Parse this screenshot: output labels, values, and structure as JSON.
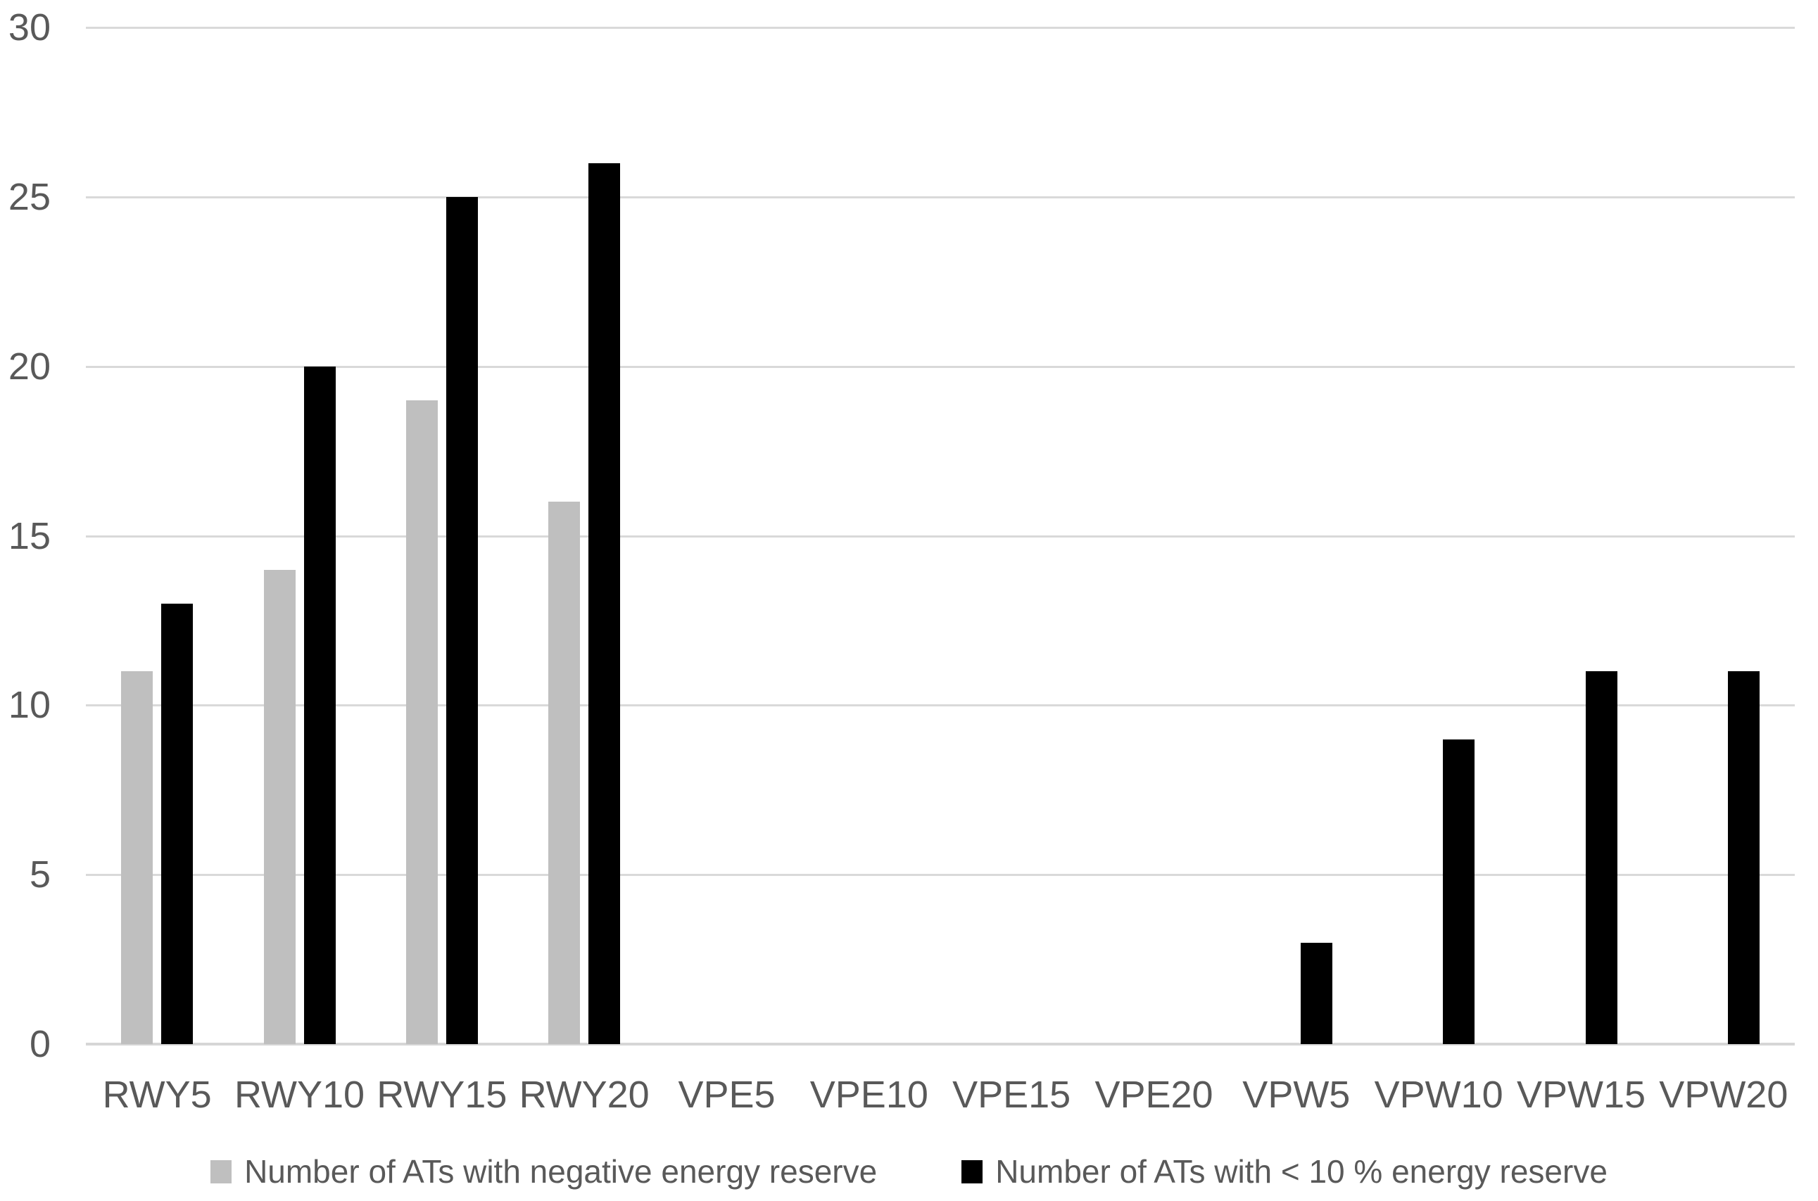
{
  "chart_data": {
    "type": "bar",
    "title": "",
    "xlabel": "",
    "ylabel": "",
    "categories": [
      "RWY5",
      "RWY10",
      "RWY15",
      "RWY20",
      "VPE5",
      "VPE10",
      "VPE15",
      "VPE20",
      "VPW5",
      "VPW10",
      "VPW15",
      "VPW20"
    ],
    "series": [
      {
        "name": "Number of ATs with negative energy reserve",
        "color": "#bfbfbf",
        "values": [
          11,
          14,
          19,
          16,
          0,
          0,
          0,
          0,
          0,
          0,
          0,
          0
        ]
      },
      {
        "name": "Number of ATs with < 10 % energy reserve",
        "color": "#000000",
        "values": [
          13,
          20,
          25,
          26,
          0,
          0,
          0,
          0,
          3,
          9,
          11,
          11
        ]
      }
    ],
    "ylim": [
      0,
      30
    ],
    "yticks": [
      0,
      5,
      10,
      15,
      20,
      25,
      30
    ],
    "grid": "horizontal",
    "legend_position": "bottom"
  },
  "colors": {
    "gridline": "#d9d9d9",
    "axis_baseline": "#d6d6d6",
    "tick_text": "#595959"
  }
}
